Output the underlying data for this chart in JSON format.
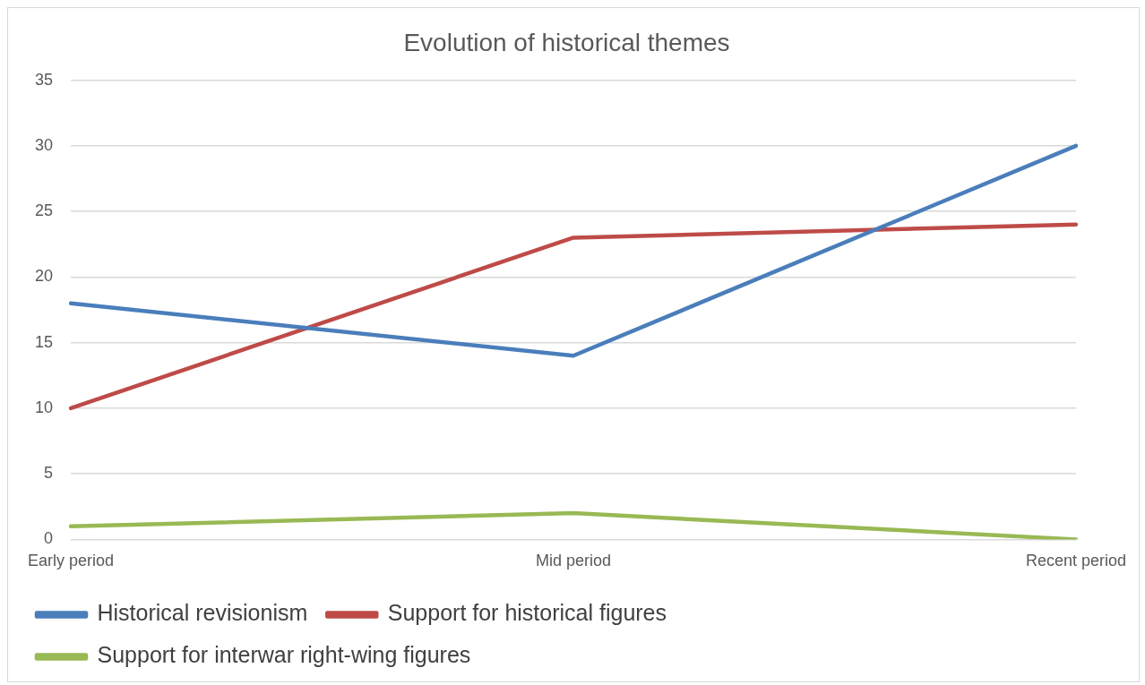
{
  "chart_data": {
    "type": "line",
    "title": "Evolution of historical themes",
    "categories": [
      "Early period",
      "Mid period",
      "Recent period"
    ],
    "series": [
      {
        "name": "Historical revisionism",
        "color": "#4a7ebb",
        "values": [
          18,
          14,
          30
        ]
      },
      {
        "name": "Support for historical figures",
        "color": "#be4b48",
        "values": [
          10,
          23,
          24
        ]
      },
      {
        "name": "Support for interwar right-wing figures",
        "color": "#98b954",
        "values": [
          1,
          2,
          0
        ]
      }
    ],
    "ylim": [
      0,
      35
    ],
    "yticks": [
      0,
      5,
      10,
      15,
      20,
      25,
      30,
      35
    ],
    "grid": "y",
    "legend": "bottom",
    "marker": "none",
    "line_style": "solid"
  }
}
